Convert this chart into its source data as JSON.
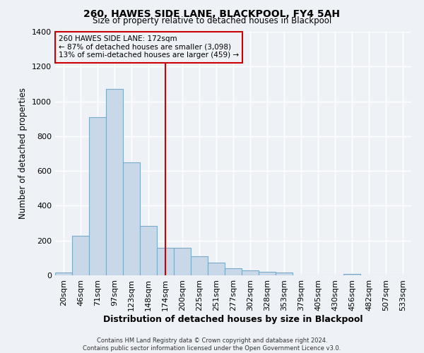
{
  "title": "260, HAWES SIDE LANE, BLACKPOOL, FY4 5AH",
  "subtitle": "Size of property relative to detached houses in Blackpool",
  "xlabel": "Distribution of detached houses by size in Blackpool",
  "ylabel": "Number of detached properties",
  "bar_labels": [
    "20sqm",
    "46sqm",
    "71sqm",
    "97sqm",
    "123sqm",
    "148sqm",
    "174sqm",
    "200sqm",
    "225sqm",
    "251sqm",
    "277sqm",
    "302sqm",
    "328sqm",
    "353sqm",
    "379sqm",
    "405sqm",
    "430sqm",
    "456sqm",
    "482sqm",
    "507sqm",
    "533sqm"
  ],
  "bar_heights": [
    15,
    228,
    910,
    1070,
    650,
    285,
    158,
    158,
    108,
    72,
    40,
    27,
    20,
    15,
    0,
    0,
    0,
    8,
    0,
    0,
    0
  ],
  "bar_color": "#c8d8e8",
  "bar_edge_color": "#7aaac8",
  "vline_x": 6,
  "vline_color": "#cc0000",
  "annotation_text": "260 HAWES SIDE LANE: 172sqm\n← 87% of detached houses are smaller (3,098)\n13% of semi-detached houses are larger (459) →",
  "annotation_box_edge": "#cc0000",
  "ylim": [
    0,
    1400
  ],
  "yticks": [
    0,
    200,
    400,
    600,
    800,
    1000,
    1200,
    1400
  ],
  "footer_line1": "Contains HM Land Registry data © Crown copyright and database right 2024.",
  "footer_line2": "Contains public sector information licensed under the Open Government Licence v3.0.",
  "background_color": "#eef2f7",
  "grid_color": "#ffffff"
}
